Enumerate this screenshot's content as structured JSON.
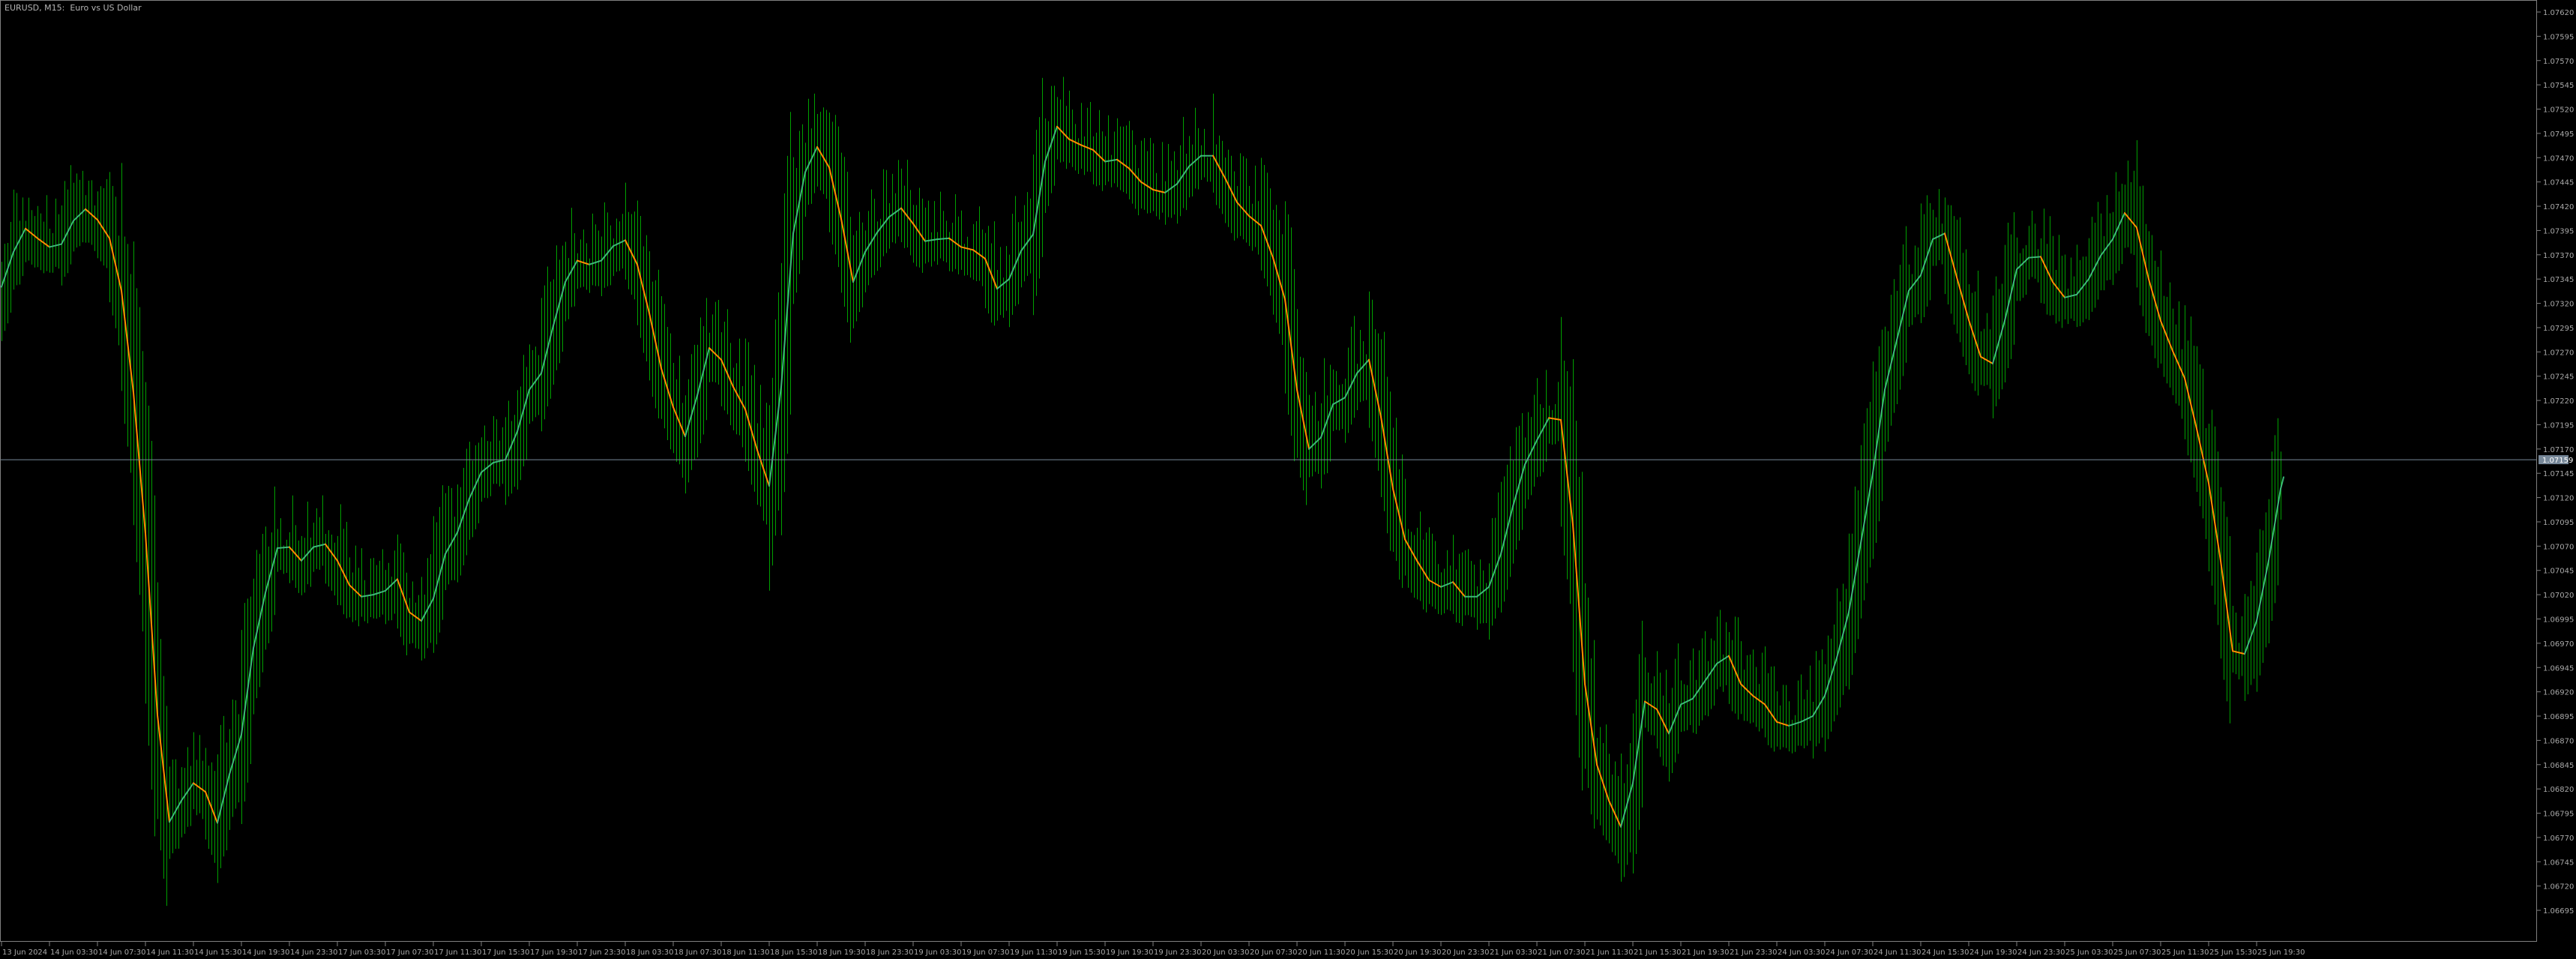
{
  "header": {
    "title": "EURUSD, M15:  Euro vs US Dollar"
  },
  "colors": {
    "background": "#000000",
    "bars": "#00a000",
    "ma_up": "#3cb878",
    "ma_down": "#ff8c00",
    "axis": "#808080",
    "axis_text": "#a8a8a8",
    "price_line": "#778899"
  },
  "chart_data": {
    "type": "line",
    "symbol": "EURUSD",
    "timeframe": "M15",
    "current_price": "1.07159",
    "ylim": [
      1.0667,
      1.0764
    ],
    "grid": false,
    "y_ticks": [
      "1.07620",
      "1.07595",
      "1.07570",
      "1.07545",
      "1.07520",
      "1.07495",
      "1.07470",
      "1.07445",
      "1.07420",
      "1.07395",
      "1.07370",
      "1.07345",
      "1.07320",
      "1.07295",
      "1.07270",
      "1.07245",
      "1.07220",
      "1.07195",
      "1.07170",
      "1.07145",
      "1.07120",
      "1.07095",
      "1.07070",
      "1.07045",
      "1.07020",
      "1.06995",
      "1.06970",
      "1.06945",
      "1.06920",
      "1.06895",
      "1.06870",
      "1.06845",
      "1.06820",
      "1.06795",
      "1.06770",
      "1.06745",
      "1.06720",
      "1.06695"
    ],
    "x_ticks": [
      "13 Jun 2024",
      "14 Jun 03:30",
      "14 Jun 07:30",
      "14 Jun 11:30",
      "14 Jun 15:30",
      "14 Jun 19:30",
      "14 Jun 23:30",
      "17 Jun 03:30",
      "17 Jun 07:30",
      "17 Jun 11:30",
      "17 Jun 15:30",
      "17 Jun 19:30",
      "17 Jun 23:30",
      "18 Jun 03:30",
      "18 Jun 07:30",
      "18 Jun 11:30",
      "18 Jun 15:30",
      "18 Jun 19:30",
      "18 Jun 23:30",
      "19 Jun 03:30",
      "19 Jun 07:30",
      "19 Jun 11:30",
      "19 Jun 15:30",
      "19 Jun 19:30",
      "19 Jun 23:30",
      "20 Jun 03:30",
      "20 Jun 07:30",
      "20 Jun 11:30",
      "20 Jun 15:30",
      "20 Jun 19:30",
      "20 Jun 23:30",
      "21 Jun 03:30",
      "21 Jun 07:30",
      "21 Jun 11:30",
      "21 Jun 15:30",
      "21 Jun 19:30",
      "21 Jun 23:30",
      "24 Jun 03:30",
      "24 Jun 07:30",
      "24 Jun 11:30",
      "24 Jun 15:30",
      "24 Jun 19:30",
      "24 Jun 23:30",
      "25 Jun 03:30",
      "25 Jun 07:30",
      "25 Jun 11:30",
      "25 Jun 15:30",
      "25 Jun 19:30"
    ],
    "ma": [
      [
        "13 Jun 23:30",
        1.07337
      ],
      [
        "14 Jun 00:30",
        1.07373
      ],
      [
        "14 Jun 01:30",
        1.07397
      ],
      [
        "14 Jun 02:30",
        1.07387
      ],
      [
        "14 Jun 03:30",
        1.07378
      ],
      [
        "14 Jun 04:30",
        1.07381
      ],
      [
        "14 Jun 05:30",
        1.07405
      ],
      [
        "14 Jun 06:30",
        1.07417
      ],
      [
        "14 Jun 07:30",
        1.07406
      ],
      [
        "14 Jun 08:30",
        1.07387
      ],
      [
        "14 Jun 09:30",
        1.07333
      ],
      [
        "14 Jun 10:30",
        1.07228
      ],
      [
        "14 Jun 11:30",
        1.07083
      ],
      [
        "14 Jun 12:30",
        1.06896
      ],
      [
        "14 Jun 13:30",
        1.06786
      ],
      [
        "14 Jun 14:30",
        1.06808
      ],
      [
        "14 Jun 15:30",
        1.06826
      ],
      [
        "14 Jun 16:30",
        1.06817
      ],
      [
        "14 Jun 17:30",
        1.06785
      ],
      [
        "14 Jun 18:30",
        1.06835
      ],
      [
        "14 Jun 19:30",
        1.06876
      ],
      [
        "14 Jun 20:30",
        1.06965
      ],
      [
        "14 Jun 21:30",
        1.07022
      ],
      [
        "14 Jun 22:30",
        1.07068
      ],
      [
        "14 Jun 23:30",
        1.07069
      ],
      [
        "17 Jun 00:30",
        1.07055
      ],
      [
        "17 Jun 01:30",
        1.07069
      ],
      [
        "17 Jun 02:30",
        1.07072
      ],
      [
        "17 Jun 03:30",
        1.07055
      ],
      [
        "17 Jun 04:30",
        1.0703
      ],
      [
        "17 Jun 05:30",
        1.07018
      ],
      [
        "17 Jun 06:30",
        1.0702
      ],
      [
        "17 Jun 07:30",
        1.07024
      ],
      [
        "17 Jun 08:30",
        1.07036
      ],
      [
        "17 Jun 09:30",
        1.07002
      ],
      [
        "17 Jun 10:30",
        1.06993
      ],
      [
        "17 Jun 11:30",
        1.07016
      ],
      [
        "17 Jun 12:30",
        1.07062
      ],
      [
        "17 Jun 13:30",
        1.07084
      ],
      [
        "17 Jun 14:30",
        1.07119
      ],
      [
        "17 Jun 15:30",
        1.07146
      ],
      [
        "17 Jun 16:30",
        1.07156
      ],
      [
        "17 Jun 17:30",
        1.07159
      ],
      [
        "17 Jun 18:30",
        1.07188
      ],
      [
        "17 Jun 19:30",
        1.07231
      ],
      [
        "17 Jun 20:30",
        1.07248
      ],
      [
        "17 Jun 21:30",
        1.07297
      ],
      [
        "17 Jun 22:30",
        1.07342
      ],
      [
        "17 Jun 23:30",
        1.07364
      ],
      [
        "18 Jun 00:30",
        1.0736
      ],
      [
        "18 Jun 01:30",
        1.07364
      ],
      [
        "18 Jun 02:30",
        1.07379
      ],
      [
        "18 Jun 03:30",
        1.07385
      ],
      [
        "18 Jun 04:30",
        1.0736
      ],
      [
        "18 Jun 05:30",
        1.0731
      ],
      [
        "18 Jun 06:30",
        1.07253
      ],
      [
        "18 Jun 07:30",
        1.07213
      ],
      [
        "18 Jun 08:30",
        1.07183
      ],
      [
        "18 Jun 09:30",
        1.07225
      ],
      [
        "18 Jun 10:30",
        1.07274
      ],
      [
        "18 Jun 11:30",
        1.07262
      ],
      [
        "18 Jun 12:30",
        1.07234
      ],
      [
        "18 Jun 13:30",
        1.07211
      ],
      [
        "18 Jun 14:30",
        1.07169
      ],
      [
        "18 Jun 15:30",
        1.07132
      ],
      [
        "18 Jun 16:30",
        1.07234
      ],
      [
        "18 Jun 17:30",
        1.07392
      ],
      [
        "18 Jun 18:30",
        1.07455
      ],
      [
        "18 Jun 19:30",
        1.07481
      ],
      [
        "18 Jun 20:30",
        1.0746
      ],
      [
        "18 Jun 21:30",
        1.07407
      ],
      [
        "18 Jun 22:30",
        1.07342
      ],
      [
        "18 Jun 23:30",
        1.07373
      ],
      [
        "19 Jun 00:30",
        1.07393
      ],
      [
        "19 Jun 01:30",
        1.07409
      ],
      [
        "19 Jun 02:30",
        1.07418
      ],
      [
        "19 Jun 03:30",
        1.07402
      ],
      [
        "19 Jun 04:30",
        1.07384
      ],
      [
        "19 Jun 05:30",
        1.07386
      ],
      [
        "19 Jun 06:30",
        1.07387
      ],
      [
        "19 Jun 07:30",
        1.07378
      ],
      [
        "19 Jun 08:30",
        1.07375
      ],
      [
        "19 Jun 09:30",
        1.07366
      ],
      [
        "19 Jun 10:30",
        1.07335
      ],
      [
        "19 Jun 11:30",
        1.07345
      ],
      [
        "19 Jun 12:30",
        1.07374
      ],
      [
        "19 Jun 13:30",
        1.07391
      ],
      [
        "19 Jun 14:30",
        1.07466
      ],
      [
        "19 Jun 15:30",
        1.07502
      ],
      [
        "19 Jun 16:30",
        1.07489
      ],
      [
        "19 Jun 17:30",
        1.07483
      ],
      [
        "19 Jun 18:30",
        1.07478
      ],
      [
        "19 Jun 19:30",
        1.07466
      ],
      [
        "19 Jun 20:30",
        1.07468
      ],
      [
        "19 Jun 21:30",
        1.07459
      ],
      [
        "19 Jun 22:30",
        1.07445
      ],
      [
        "19 Jun 23:30",
        1.07437
      ],
      [
        "20 Jun 00:30",
        1.07434
      ],
      [
        "20 Jun 01:30",
        1.07443
      ],
      [
        "20 Jun 02:30",
        1.07461
      ],
      [
        "20 Jun 03:30",
        1.07472
      ],
      [
        "20 Jun 04:30",
        1.07472
      ],
      [
        "20 Jun 05:30",
        1.07449
      ],
      [
        "20 Jun 06:30",
        1.07424
      ],
      [
        "20 Jun 07:30",
        1.0741
      ],
      [
        "20 Jun 08:30",
        1.074
      ],
      [
        "20 Jun 09:30",
        1.07367
      ],
      [
        "20 Jun 10:30",
        1.07324
      ],
      [
        "20 Jun 11:30",
        1.07231
      ],
      [
        "20 Jun 12:30",
        1.0717
      ],
      [
        "20 Jun 13:30",
        1.07182
      ],
      [
        "20 Jun 14:30",
        1.07216
      ],
      [
        "20 Jun 15:30",
        1.07223
      ],
      [
        "20 Jun 16:30",
        1.07248
      ],
      [
        "20 Jun 17:30",
        1.07262
      ],
      [
        "20 Jun 18:30",
        1.07203
      ],
      [
        "20 Jun 19:30",
        1.07129
      ],
      [
        "20 Jun 20:30",
        1.07077
      ],
      [
        "20 Jun 21:30",
        1.07055
      ],
      [
        "20 Jun 22:30",
        1.07035
      ],
      [
        "20 Jun 23:30",
        1.07028
      ],
      [
        "21 Jun 00:30",
        1.07033
      ],
      [
        "21 Jun 01:30",
        1.07018
      ],
      [
        "21 Jun 02:30",
        1.07018
      ],
      [
        "21 Jun 03:30",
        1.07028
      ],
      [
        "21 Jun 04:30",
        1.07062
      ],
      [
        "21 Jun 05:30",
        1.07111
      ],
      [
        "21 Jun 06:30",
        1.07154
      ],
      [
        "21 Jun 07:30",
        1.07179
      ],
      [
        "21 Jun 08:30",
        1.07202
      ],
      [
        "21 Jun 09:30",
        1.072
      ],
      [
        "21 Jun 10:30",
        1.07092
      ],
      [
        "21 Jun 11:30",
        1.06928
      ],
      [
        "21 Jun 12:30",
        1.06845
      ],
      [
        "21 Jun 13:30",
        1.06808
      ],
      [
        "21 Jun 14:30",
        1.06781
      ],
      [
        "21 Jun 15:30",
        1.06826
      ],
      [
        "21 Jun 16:30",
        1.0691
      ],
      [
        "21 Jun 17:30",
        1.06902
      ],
      [
        "21 Jun 18:30",
        1.06877
      ],
      [
        "21 Jun 19:30",
        1.06907
      ],
      [
        "21 Jun 20:30",
        1.06913
      ],
      [
        "21 Jun 21:30",
        1.06931
      ],
      [
        "21 Jun 22:30",
        1.06949
      ],
      [
        "21 Jun 23:30",
        1.06957
      ],
      [
        "24 Jun 00:30",
        1.06928
      ],
      [
        "24 Jun 01:30",
        1.06916
      ],
      [
        "24 Jun 02:30",
        1.06907
      ],
      [
        "24 Jun 03:30",
        1.06889
      ],
      [
        "24 Jun 04:30",
        1.06885
      ],
      [
        "24 Jun 05:30",
        1.06889
      ],
      [
        "24 Jun 06:30",
        1.06895
      ],
      [
        "24 Jun 07:30",
        1.06916
      ],
      [
        "24 Jun 08:30",
        1.06955
      ],
      [
        "24 Jun 09:30",
        1.07002
      ],
      [
        "24 Jun 10:30",
        1.07073
      ],
      [
        "24 Jun 11:30",
        1.07145
      ],
      [
        "24 Jun 12:30",
        1.07231
      ],
      [
        "24 Jun 13:30",
        1.07282
      ],
      [
        "24 Jun 14:30",
        1.07333
      ],
      [
        "24 Jun 15:30",
        1.07349
      ],
      [
        "24 Jun 16:30",
        1.07386
      ],
      [
        "24 Jun 17:30",
        1.07392
      ],
      [
        "24 Jun 18:30",
        1.07347
      ],
      [
        "24 Jun 19:30",
        1.07303
      ],
      [
        "24 Jun 20:30",
        1.07265
      ],
      [
        "24 Jun 21:30",
        1.07258
      ],
      [
        "24 Jun 22:30",
        1.07302
      ],
      [
        "24 Jun 23:30",
        1.07355
      ],
      [
        "25 Jun 00:30",
        1.07367
      ],
      [
        "25 Jun 01:30",
        1.07368
      ],
      [
        "25 Jun 02:30",
        1.07342
      ],
      [
        "25 Jun 03:30",
        1.07326
      ],
      [
        "25 Jun 04:30",
        1.07329
      ],
      [
        "25 Jun 05:30",
        1.07345
      ],
      [
        "25 Jun 06:30",
        1.07369
      ],
      [
        "25 Jun 07:30",
        1.07386
      ],
      [
        "25 Jun 08:30",
        1.07413
      ],
      [
        "25 Jun 09:30",
        1.07398
      ],
      [
        "25 Jun 10:30",
        1.07345
      ],
      [
        "25 Jun 11:30",
        1.07302
      ],
      [
        "25 Jun 12:30",
        1.07271
      ],
      [
        "25 Jun 13:30",
        1.07243
      ],
      [
        "25 Jun 14:30",
        1.07191
      ],
      [
        "25 Jun 15:30",
        1.07135
      ],
      [
        "25 Jun 16:30",
        1.07055
      ],
      [
        "25 Jun 17:30",
        1.06962
      ],
      [
        "25 Jun 18:30",
        1.06959
      ],
      [
        "25 Jun 19:30",
        1.06993
      ],
      [
        "25 Jun 20:30",
        1.07055
      ],
      [
        "25 Jun 21:30",
        1.07129
      ],
      [
        "25 Jun 21:45",
        1.07141
      ]
    ]
  }
}
